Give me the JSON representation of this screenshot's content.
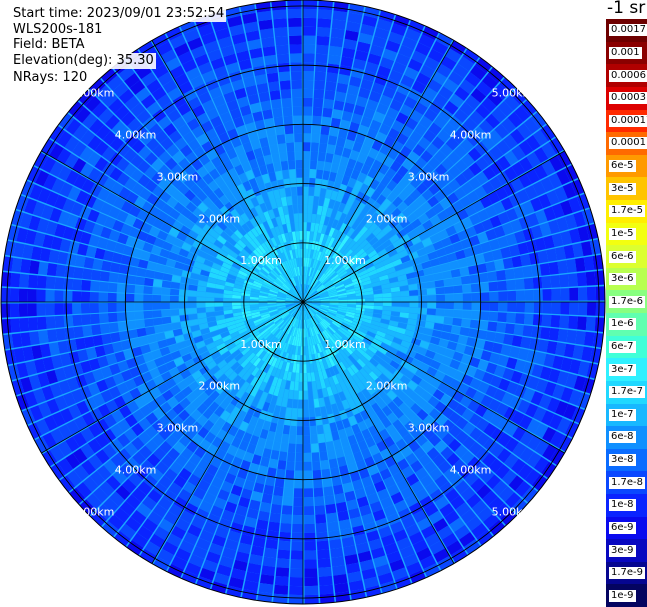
{
  "header": {
    "start_time": "Start time: 2023/09/01 23:52:54",
    "instrument": "WLS200s-181",
    "field": "Field: BETA",
    "elevation": "Elevation(deg): 35.30",
    "nrays": "NRays: 120"
  },
  "colorbar": {
    "unit_label": "-1 sr",
    "ticks": [
      "0.0017",
      "0.001",
      "0.0006",
      "0.0003",
      "0.00017",
      "0.0001",
      "6e-5",
      "3e-5",
      "1.7e-5",
      "1e-5",
      "6e-6",
      "3e-6",
      "1.7e-6",
      "1e-6",
      "6e-7",
      "3e-7",
      "1.7e-7",
      "1e-7",
      "6e-8",
      "3e-8",
      "1.7e-8",
      "1e-8",
      "6e-9",
      "3e-9",
      "1.7e-9",
      "1e-9"
    ],
    "colors": [
      "#6e0000",
      "#8a0000",
      "#b00000",
      "#dd0000",
      "#ff2a00",
      "#ff6a00",
      "#ff9a00",
      "#ffc400",
      "#ffee00",
      "#f3ff10",
      "#dcff30",
      "#b8ff50",
      "#88ff80",
      "#60ffb0",
      "#40ffd8",
      "#30f0ff",
      "#20d8ff",
      "#18b8ff",
      "#1090ff",
      "#0a6cff",
      "#0a48ff",
      "#0a24ff",
      "#0a0aee",
      "#0808c0",
      "#060690",
      "#040460"
    ]
  },
  "chart_data": {
    "type": "heatmap",
    "title": "",
    "projection": "polar (PPI scan)",
    "n_rays": 120,
    "elevation_deg": 35.3,
    "field": "BETA",
    "range_rings_km": [
      1,
      2,
      3,
      4,
      5
    ],
    "ring_labels": [
      "1.00km",
      "2.00km",
      "3.00km",
      "4.00km",
      "5.00km"
    ],
    "max_range_km": 5.1,
    "spokes_deg": [
      0,
      30,
      60,
      90,
      120,
      150,
      180,
      210,
      240,
      270,
      300,
      330
    ],
    "color_scale": "log",
    "value_range": [
      1e-09,
      0.0017
    ],
    "radial_profile": {
      "range_km": [
        0.0,
        0.5,
        1.0,
        1.5,
        2.0,
        3.0,
        4.0,
        5.0
      ],
      "typical_value": [
        "1e-7",
        "1.7e-7",
        "1.7e-7",
        "1e-7",
        "6e-8",
        "3e-8",
        "1.7e-8",
        "1e-8"
      ]
    }
  }
}
